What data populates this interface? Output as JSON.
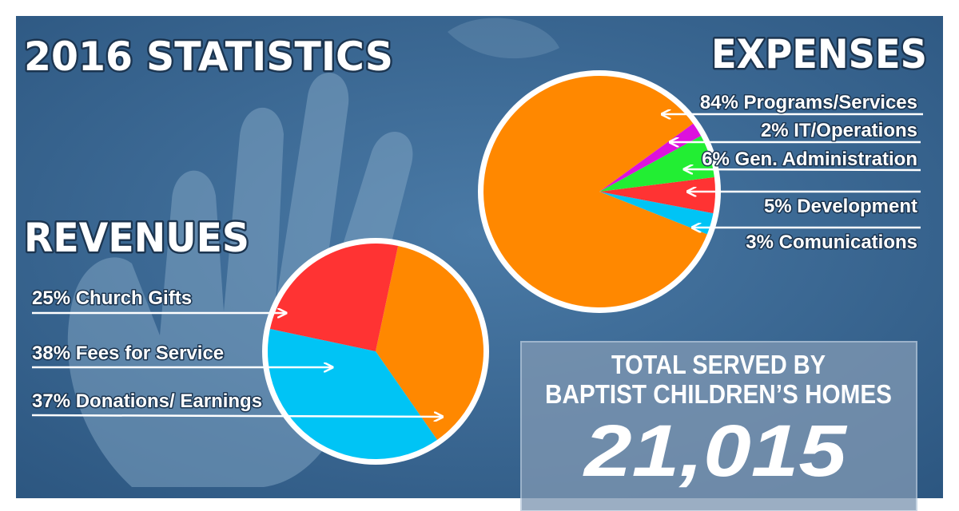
{
  "colors": {
    "background": "#3a6894",
    "orange": "#ff8800",
    "red": "#ff3333",
    "cyan": "#00c4f5",
    "green": "#22ee33",
    "magenta": "#dd11dd",
    "label_panel": "#7f98b3"
  },
  "header": {
    "title": "2016 STATISTICS"
  },
  "decor": {
    "icon": "handprint-icon"
  },
  "chart_data": [
    {
      "type": "pie",
      "title": "EXPENSES",
      "slices": [
        {
          "label": "84% Programs/Services",
          "value": 84,
          "color": "#ff8800"
        },
        {
          "label": "2% IT/Operations",
          "value": 2,
          "color": "#dd11dd"
        },
        {
          "label": "6% Gen. Administration",
          "value": 6,
          "color": "#22ee33"
        },
        {
          "label": "5% Development",
          "value": 5,
          "color": "#ff3333"
        },
        {
          "label": "3% Comunications",
          "value": 3,
          "color": "#00c4f5"
        }
      ]
    },
    {
      "type": "pie",
      "title": "REVENUES",
      "slices": [
        {
          "label": "25% Church Gifts",
          "value": 25,
          "color": "#ff3333"
        },
        {
          "label": "38% Fees for Service",
          "value": 38,
          "color": "#00c4f5"
        },
        {
          "label": "37% Donations/ Earnings",
          "value": 37,
          "color": "#ff8800"
        }
      ]
    }
  ],
  "total": {
    "line1": "TOTAL SERVED BY",
    "line2": "BAPTIST CHILDREN’S HOMES",
    "value": "21,015"
  }
}
